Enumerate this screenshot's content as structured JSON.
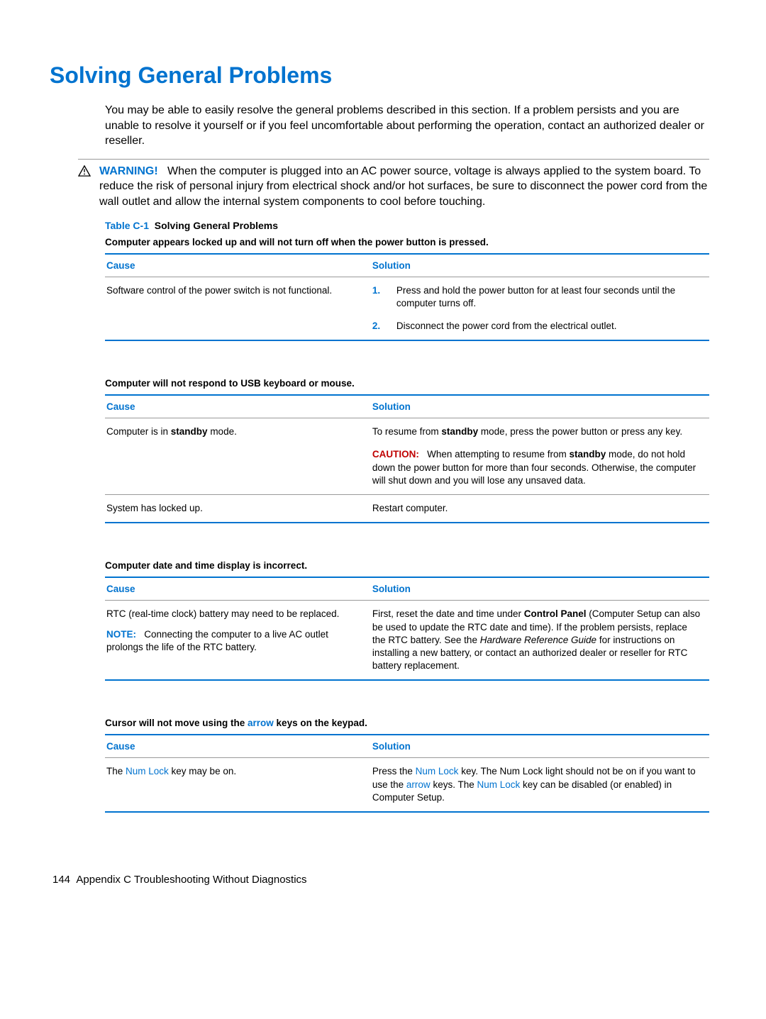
{
  "colors": {
    "accent": "#0073cf",
    "caution": "#c00000",
    "text": "#000000",
    "border": "#999999",
    "background": "#ffffff"
  },
  "title": "Solving General Problems",
  "intro": "You may be able to easily resolve the general problems described in this section. If a problem persists and you are unable to resolve it yourself or if you feel uncomfortable about performing the operation, contact an authorized dealer or reseller.",
  "warning": {
    "label": "WARNING!",
    "text": "When the computer is plugged into an AC power source, voltage is always applied to the system board. To reduce the risk of personal injury from electrical shock and/or hot surfaces, be sure to disconnect the power cord from the wall outlet and allow the internal system components to cool before touching."
  },
  "table_caption": {
    "num": "Table C-1",
    "text": "Solving General Problems"
  },
  "headers": {
    "cause": "Cause",
    "solution": "Solution"
  },
  "tables": [
    {
      "title_plain": "Computer appears locked up and will not turn off when the power button is pressed.",
      "rows": [
        {
          "cause_plain": "Software control of the power switch is not functional.",
          "solution_list": [
            "Press and hold the power button for at least four seconds until the computer turns off.",
            "Disconnect the power cord from the electrical outlet."
          ]
        }
      ]
    },
    {
      "title_plain": "Computer will not respond to USB keyboard or mouse.",
      "rows": [
        {
          "cause_html": "Computer is in <b>standby</b> mode.",
          "solution_html": "To resume from <b>standby</b> mode, press the power button or press any key.",
          "caution_html": "When attempting to resume from <b>standby</b> mode, do not hold down the power button for more than four seconds. Otherwise, the computer will shut down and you will lose any unsaved data.",
          "caution_label": "CAUTION:"
        },
        {
          "divider": true,
          "cause_plain": "System has locked up.",
          "solution_plain": "Restart computer."
        }
      ]
    },
    {
      "title_plain": "Computer date and time display is incorrect.",
      "rows": [
        {
          "cause_plain": "RTC (real-time clock) battery may need to be replaced.",
          "note_label": "NOTE:",
          "note_text": "Connecting the computer to a live AC outlet prolongs the life of the RTC battery.",
          "solution_html": "First, reset the date and time under <b>Control Panel</b> (Computer Setup can also be used to update the RTC date and time). If the problem persists, replace the RTC battery. See the <span class=\"ital\">Hardware Reference Guide</span> for instructions on installing a new battery, or contact an authorized dealer or reseller for RTC battery replacement."
        }
      ]
    },
    {
      "title_html": "Cursor will not move using the <span class=\"keycolor\">arrow</span> keys on the keypad.",
      "rows": [
        {
          "cause_html": "The <span class=\"keycolor\">Num Lock</span> key may be on.",
          "solution_html": "Press the <span class=\"keycolor\">Num Lock</span> key. The Num Lock light should not be on if you want to use the <span class=\"keycolor\">arrow</span> keys. The <span class=\"keycolor\">Num Lock</span> key can be disabled (or enabled) in Computer Setup."
        }
      ]
    }
  ],
  "footer": {
    "page": "144",
    "appendix": "Appendix C   Troubleshooting Without Diagnostics"
  }
}
